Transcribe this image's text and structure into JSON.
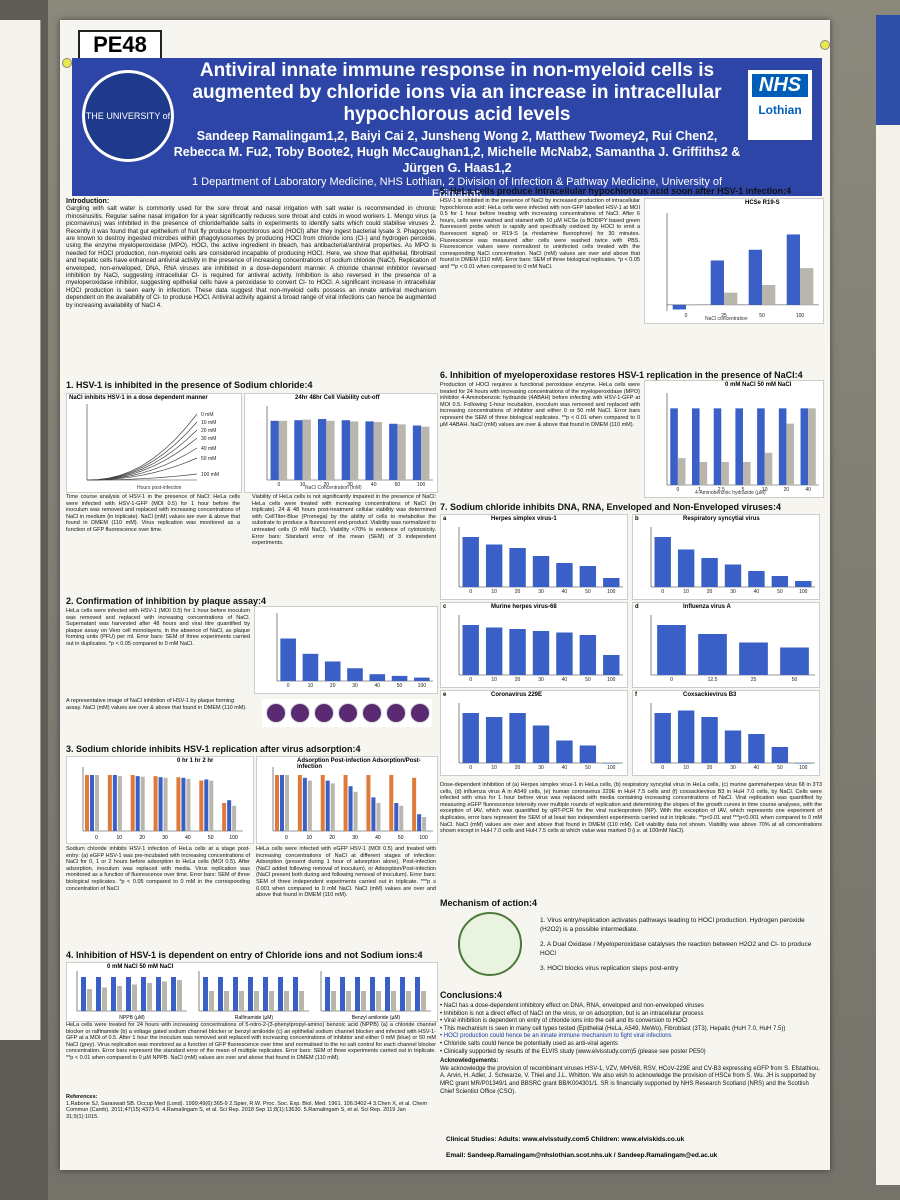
{
  "poster": {
    "id": "PE48",
    "title": "Antiviral innate immune response in non-myeloid cells is augmented by chloride ions via an increase in intracellular hypochlorous acid levels",
    "authors": "Sandeep Ramalingam1,2, Baiyi Cai 2, Junsheng Wong 2, Matthew Twomey2, Rui Chen2, Rebecca M. Fu2, Toby Boote2, Hugh McCaughan1,2, Michelle McNab2, Samantha J. Griffiths2 & Jürgen G. Haas1,2",
    "affiliations": "1 Department of Laboratory Medicine, NHS Lothian, 2 Division of Infection & Pathway Medicine, University of Edinburgh",
    "logo_left": "THE UNIVERSITY of EDINBURGH",
    "logo_right_1": "NHS",
    "logo_right_2": "Lothian"
  },
  "sections": {
    "intro_heading": "Introduction:",
    "intro_text": "Gargling with salt water is commonly used for the sore throat and nasal irrigation with salt water is recommended in chronic rhinosinusitis. Regular saline nasal irrigation for a year significantly reduces sore throat and colds in wood workers 1. Mengo virus (a picornavirus) was inhibited in the presence of chloride/halide salts in experiments to identify salts which could stabilise viruses 2. Recently it was found that gut epithelium of fruit fly produce hypochlorous acid (HOCl) after they ingest bacterial lysate 3. Phagocytes are known to destroy ingested microbes within phagolysosomes by producing HOCl from chloride ions (Cl-) and hydrogen peroxide, using the enzyme myeloperoxidase (MPO). HOCl, the active ingredient in bleach, has antibacterial/antiviral properties. As MPO is needed for HOCl production, non-myeloid cells are considered incapable of producing HOCl. Here, we show that epithelial, fibroblast and hepatic cells have enhanced antiviral activity in the presence of increasing concentrations of sodium chloride (NaCl). Replication of enveloped, non-enveloped, DNA, RNA viruses are inhibited in a dose-dependent manner. A chloride channel inhibitor reversed inhibition by NaCl, suggesting intracellular Cl- is required for antiviral activity. Inhibition is also reversed in the presence of a myeloperoxidase inhibitor, suggesting epithelial cells have a peroxidase to convert Cl- to HOCl. A significant increase in intracellular HOCl production is seen early in infection. These data suggest that non-myeloid cells possess an innate antiviral mechanism dependent on the availability of Cl- to produce HOCl. Antiviral activity against a broad range of viral infections can hence be augmented by increasing availability of NaCl 4.",
    "s1": "1. HSV-1 is inhibited in the presence of Sodium chloride:4",
    "s1_caption_a": "Time course analysis of HSV-1 in the presence of NaCl: HeLa cells were infected with HSV-1-GFP (MOI 0.5) for 1 hour before the inoculum was removed and replaced with increasing concentrations of NaCl in medium (in triplicate). NaCl (mM) values are over & above that found in DMEM (110 mM). Virus replication was monitored as a function of GFP fluorescence over time.",
    "s1_caption_b": "Viability of HeLa cells is not significantly impaired in the presence of NaCl: HeLa cells were treated with increasing concentrations of NaCl (in triplicate). 24 & 48 hours post-treatment cellular viability was determined with CellTiter-Blue (Promega) by the ability of cells to metabolise the substrate to produce a fluorescent end-product. Viability was normalized to untreated cells (0 mM NaCl). Viability <70% is evidence of cytotoxicity. Error bars: Standard error of the mean (SEM) of 3 independent experiments.",
    "s2": "2. Confirmation of inhibition by plaque assay:4",
    "s2_text": "HeLa cells were infected with HSV-1 (MOI 0.5) for 1 hour before inoculum was removed and replaced with increasing concentrations of NaCl. Supernatant was harvested after 48 hours and viral titre quantified by plaque assay on Vero cell monolayers, in the absence of NaCl, as plaque forming units (PFU) per ml. Error bars: SEM of three experiments carried out in duplicates. *p < 0.05 compared to 0 mM NaCl.",
    "s2_text_b": "A representative image of NaCl inhibition of HSV-1 by plaque forming assay. NaCl (mM) values are over & above that found in DMEM (110 mM).",
    "s3": "3. Sodium chloride inhibits HSV-1 replication after virus adsorption:4",
    "s3_text_a": "Sodium chloride inhibits HSV-1 infection of HeLa cells at a stage post-entry: (a) eGFP HSV-1 was pre-incubated with increasing concentrations of NaCl for 0, 1 or 2 hours before adsorption to HeLa cells (MOI 0.5). After adsorption, inoculum was replaced with media. Virus replication was monitored as a function of fluorescence over time. Error bars: SEM of three biological replicates. *p < 0.05 compared to 0 mM in the corresponding concentration of NaCl",
    "s3_text_b": "HeLa cells were infected with eGFP HSV-1 (MOI 0.5) and treated with increasing concentrations of NaCl at different stages of infection: Adsorption (present during 1 hour of adsorption alone), Post-infection (NaCl added following removal of inoculum), or Adsorption/Post-infection (NaCl present both during and following removal of inoculum). Error bars: SEM of three independent experiments carried out in triplicate. ***p ≤ 0.001 when compared to 0 mM NaCl. NaCl (mM) values are over and above that found in DMEM (110 mM).",
    "s4": "4. Inhibition of HSV-1 is dependent on entry of Chloride ions and not Sodium ions:4",
    "s4_text": "HeLa cells were treated for 24 hours with increasing concentrations of 5-nitro-2-(3-phenylpropyl-amino) benzoic acid (NPPB) (a) a chloride channel blocker or ralfinamide (b) a voltage gated sodium channel blocker or benzyl amiloride (c) an epithelial sodium channel blocker and infected with HSV-1-GFP at a MOI of 0.5. After 1 hour the inoculum was removed and replaced with increasing concentrations of inhibitor and either 0 mM (blue) or 50 mM NaCl (grey). Virus replication was monitored as a function of GFP fluorescence over time and normalised to the no salt control for each channel blocker concentration. Error bars represent the standard error of the mean of multiple replicates. Error bars: SEM of three experiments carried out in triplicate. **p < 0.01 when compared to 0 µM NPPB. NaCl (mM) values are over and above that found in DMEM (110 mM).",
    "refs_heading": "References:",
    "refs": "1.Rabone SJ, Saraswati SB. Occup Med (Lond). 1999;49(6):365-9  2.Spier, R.W. Proc. Soc. Exp. Biol. Med. 1961. 106:3402-4  3.Chen X, et al. Chem Commun (Camb). 2011;47(15):4373-5.  4.Ramalingam S, et al. Sci Rep. 2018 Sep 11;8(1):13630.  5.Ramalingam S, et al. Sci Rep. 2019 Jan 31;9(1):1015.",
    "s5": "5. HeLa cells produce Intracellular hypochlorous acid soon after HSV-1 infection:4",
    "s5_text": "HSV-1 is inhibited in the presence of NaCl by increased production of intracellular hypochlorous acid: HeLa cells were infected with non-GFP labelled HSV-1 at MOI 0.5 for 1 hour before treating with increasing concentrations of NaCl. After 6 hours, cells were washed and stained with 10 µM HCSe (a BODIPY based green fluorescent probe which is rapidly and specifically oxidized by HOCl to emit a fluorescent signal) or R19-S (a rhodamine fluorophore) for 30 minutes. Fluorescence was measured after cells were washed twice with PBS. Fluorescence values were normalized to uninfected cells treated with the corresponding NaCl concentration. NaCl (mM) values are over and above that found in DMEM (110 mM). Error bars: SEM of three biological replicates. *p < 0.05 and **p < 0.01 when compared to 0 mM NaCl.",
    "s6": "6. Inhibition of myeloperoxidase restores HSV-1 replication in the presence of NaCl:4",
    "s6_text": "Production of HOCl requires a functional peroxidase enzyme. HeLa cells were treated for 24 hours with increasing concentrations of the myeloperoxidase (MPO) inhibitor 4-Aminobenzoic hydrazide (4ABAH) before infecting with HSV-1-GFP at MOI 0.5. Following 1-hour incubation, inoculum was removed and replaced with increasing concentrations of inhibitor and either 0 or 50 mM NaCl. Error bars represent the SEM of three biological replicates. **p < 0.01 when compared to 0 µM 4ABAH. NaCl (mM) values are over & above that found in DMEM (110 mM).",
    "s7": "7. Sodium chloride inhibits DNA, RNA, Enveloped and Non-Enveloped viruses:4",
    "s7_caption": "Dose-dependent inhibition of (a) Herpes simplex virus-1 in HeLa cells, (b) respiratory syncytial virus in HeLa cells, (c) murine gammaherpes virus 68 in 3T3 cells, (d) influenza virus A in A549 cells, (e) human coronavirus 229E in HuH 7.5 cells and (f) coxsackievirus B3 in HuH 7.0 cells, by NaCl. Cells were infected with virus for 1 hour before virus was replaced with media containing increasing concentrations of NaCl. Viral replication was quantified by measuring eGFP fluorescence intensity over multiple rounds of replication and determining the slopes of the growth curves in time course analyses, with the exception of IAV, which was quantified by qRT-PCR for the viral nucleoprotein (NP). With the exception of IAV, which represents one experiment of duplicates, error bars represent the SEM of at least two independent experiments carried out in triplicate. **p<0.01 and ***p<0.001 when compared to 0 mM NaCl. NaCl (mM) values are over and above that found in DMEM (110 mM). Cell viability data not shown. Viability was above 70% at all concentrations shown except in HuH 7.0 cells and HuH 7.5 cells at which value was marked 0 (i.e. at 100mM NaCl).",
    "mech_heading": "Mechanism of action:4",
    "mech_1": "1. Virus entry/replication activates pathways leading to HOCl production. Hydrogen peroxide (H2O2) is a possible intermediate.",
    "mech_2": "2. A Dual Oxidase / Myeloperoxidase catalyses the reaction between H2O2 and Cl- to produce HOCl",
    "mech_3": "3. HOCl blocks virus replication steps post-entry",
    "concl_heading": "Conclusions:4",
    "concl_1": "• NaCl has a dose-dependent inhibitory effect on DNA, RNA, enveloped and non-enveloped viruses",
    "concl_2": "• Inhibition is not a direct effect of NaCl on the virus, or on adsorption, but is an intracellular process",
    "concl_3": "• Viral inhibition is dependent on entry of chloride ions into the cell and its conversion to HOCl",
    "concl_4": "• This mechanism is seen in many cell types tested (Epithelial (HeLa, A549, MeWo), Fibroblast (3T3), Hepatic (HuH 7.0, HuH 7.5))",
    "concl_5": "• HOCl production could hence be an innate immune mechanism to fight viral infections",
    "concl_6": "• Chloride salts could hence be potentially used as anti-viral agents",
    "concl_7": "• Clinically supported by results of the ELVIS study (www.elvisstudy.com)5 (please see poster PE50)",
    "ack_heading": "Acknowledgements:",
    "ack_text": "We acknowledge the provision of recombinant viruses HSV-1, VZV, MHV68, RSV, HCoV-229E and CV-B3 expressing eGFP from S. Efstathiou, A. Arvin, H. Adler, J. Schwarze, V. Thiel and J.L. Whitton. We also wish to acknowledge the provision of HSCe from S. Wu. JH is supported by MRC grant MR/P01349/1 and BBSRC grant BB/K004301/1. SR is financially supported by NHS Research Scotland (NRS) and the Scottish Chief Scientist Office (CSO).",
    "clinical": "Clinical Studies: Adults: www.elvisstudy.com5 Children: www.elviskids.co.uk",
    "email": "Email: Sandeep.Ramalingam@nhslothian.scot.nhs.uk / Sandeep.Ramalingam@ed.ac.uk"
  },
  "figures": {
    "f1a_title": "NaCl inhibits HSV-1 in a dose dependent manner",
    "f1a_xlabel": "Hours post-infection",
    "f1a_legend": [
      "0 mM",
      "10 mM",
      "20 mM",
      "30 mM",
      "40 mM",
      "50 mM",
      "100 mM"
    ],
    "f1b_legend": "24hr  48hr  Cell Viability cut-off",
    "f1b_xlabel": "NaCl Concentration (mM)",
    "f1b_ylabel": "Normalised Cell Viability (%)",
    "f2_ylabel": "Average PFU/ml",
    "f2_xlabel": "NaCl (mM)",
    "f5_legend": "HCSe  R19-S",
    "f5_xlabel": "NaCl concentration",
    "f6_legend": "0 mM NaCl   50 mM NaCl",
    "f6_xlabel": "4-Aminobenzoic hydrazide (µM)",
    "f7_panels": [
      {
        "letter": "a",
        "name": "Herpes simplex virus-1"
      },
      {
        "letter": "b",
        "name": "Respiratory syncytial virus"
      },
      {
        "letter": "c",
        "name": "Murine herpes virus-68"
      },
      {
        "letter": "d",
        "name": "Influenza virus A"
      },
      {
        "letter": "e",
        "name": "Coronavirus 229E"
      },
      {
        "letter": "f",
        "name": "Coxsackievirus B3"
      }
    ],
    "f7_ylabel": "Normalised replication slope",
    "f7_xlabel": "NaCl (mM)",
    "f3a_legend": "0 hr   1 hr   2 hr",
    "f3b_legend": "Adsorption   Post-infection   Adsorption/Post-infection",
    "f4_legend": "0 mM NaCl   50 mM NaCl",
    "f4_xlabels": [
      "NPPB (µM)",
      "Ralfinamide (µM)",
      "Benzyl amiloride (µM)"
    ]
  },
  "chart_data": [
    {
      "type": "bar",
      "categories": [
        "0",
        "10",
        "20",
        "30",
        "40",
        "50",
        "100"
      ],
      "series": [
        {
          "values": [
            100,
            101,
            103,
            101,
            99,
            95,
            92
          ]
        },
        {
          "values": [
            100,
            102,
            100,
            99,
            98,
            94,
            90
          ]
        }
      ],
      "xlabel": "NaCl Concentration (mM)",
      "ylabel": "Normalised Cell Viability (%)",
      "ylim": [
        0,
        125
      ]
    },
    {
      "type": "bar",
      "categories": [
        "0",
        "10",
        "20",
        "30",
        "40",
        "50",
        "100"
      ],
      "values": [
        5000,
        3200,
        2300,
        1500,
        800,
        600,
        400
      ],
      "xlabel": "NaCl (mM)",
      "ylabel": "Average PFU/ml",
      "ylim": [
        0,
        8000
      ]
    },
    {
      "type": "bar",
      "categories": [
        "0",
        "25",
        "50",
        "100"
      ],
      "series": [
        {
          "name": "HCSe",
          "values": [
            -150,
            1450,
            1800,
            2300
          ]
        },
        {
          "name": "R19-S",
          "values": [
            0,
            400,
            650,
            1200
          ]
        }
      ],
      "xlabel": "NaCl concentration",
      "ylim": [
        -200,
        3000
      ]
    },
    {
      "type": "bar",
      "categories": [
        "0",
        "1",
        "2.5",
        "5",
        "10",
        "20",
        "40"
      ],
      "series": [
        {
          "name": "0 mM NaCl",
          "values": [
            1.0,
            1.0,
            1.0,
            1.0,
            1.0,
            1.0,
            1.0
          ]
        },
        {
          "name": "50 mM NaCl",
          "values": [
            0.35,
            0.3,
            0.3,
            0.3,
            0.42,
            0.8,
            1.0
          ]
        }
      ],
      "xlabel": "4-Aminobenzoic hydrazide (µM)",
      "ylim": [
        0,
        1.2
      ]
    },
    {
      "type": "bar",
      "title": "Herpes simplex virus-1",
      "categories": [
        "0",
        "10",
        "20",
        "30",
        "40",
        "50",
        "100"
      ],
      "values": [
        1.0,
        0.85,
        0.78,
        0.62,
        0.48,
        0.42,
        0.18
      ],
      "xlabel": "NaCl (mM)",
      "ylabel": "Normalised replication slope",
      "ylim": [
        0,
        1.2
      ]
    },
    {
      "type": "bar",
      "title": "Respiratory syncytial virus",
      "categories": [
        "0",
        "10",
        "20",
        "30",
        "40",
        "50",
        "100"
      ],
      "values": [
        1.0,
        0.75,
        0.58,
        0.45,
        0.32,
        0.22,
        0.12
      ],
      "xlabel": "NaCl (mM)",
      "ylim": [
        0,
        1.2
      ]
    },
    {
      "type": "bar",
      "title": "Murine herpes virus-68",
      "categories": [
        "0",
        "10",
        "20",
        "30",
        "40",
        "50",
        "100"
      ],
      "values": [
        1.0,
        0.95,
        0.92,
        0.88,
        0.85,
        0.8,
        0.4
      ],
      "xlabel": "NaCl (mM)",
      "ylim": [
        0,
        1.2
      ]
    },
    {
      "type": "bar",
      "title": "Influenza virus A",
      "categories": [
        "0",
        "12.5",
        "25",
        "50"
      ],
      "values": [
        1.0,
        0.82,
        0.65,
        0.55
      ],
      "xlabel": "NaCl (mM)",
      "ylim": [
        0,
        1.2
      ]
    },
    {
      "type": "bar",
      "title": "Coronavirus 229E",
      "categories": [
        "0",
        "10",
        "20",
        "30",
        "40",
        "50",
        "100"
      ],
      "values": [
        1.0,
        0.92,
        1.0,
        0.75,
        0.45,
        0.35,
        0.0
      ],
      "xlabel": "NaCl (mM)",
      "ylim": [
        0,
        1.2
      ]
    },
    {
      "type": "bar",
      "title": "Coxsackievirus B3",
      "categories": [
        "0",
        "10",
        "20",
        "30",
        "40",
        "50",
        "100"
      ],
      "values": [
        1.0,
        1.05,
        0.92,
        0.65,
        0.58,
        0.32,
        0.0
      ],
      "xlabel": "NaCl (mM)",
      "ylim": [
        0,
        1.2
      ]
    }
  ]
}
